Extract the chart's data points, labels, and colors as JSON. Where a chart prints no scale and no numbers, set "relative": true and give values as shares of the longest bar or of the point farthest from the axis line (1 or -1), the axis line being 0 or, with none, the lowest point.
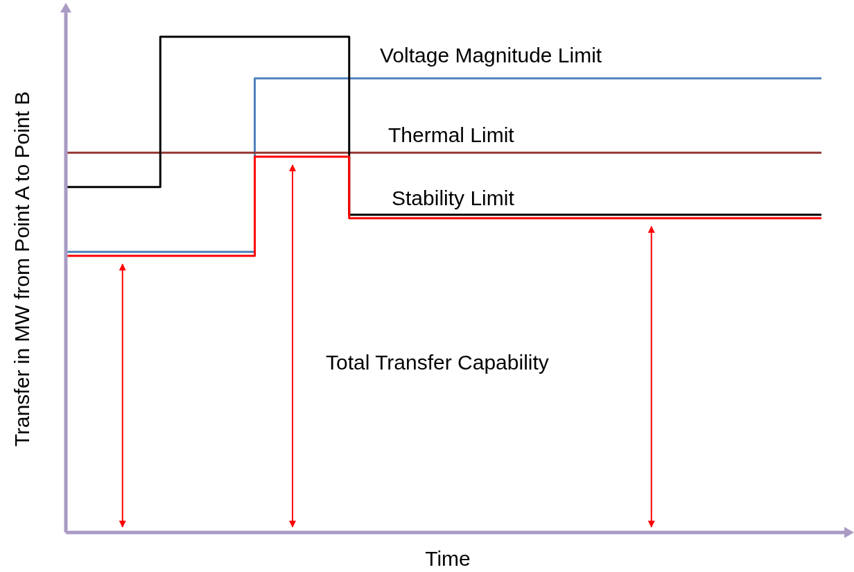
{
  "chart_data": {
    "type": "step",
    "relative": true,
    "xlabel": "Time",
    "ylabel": "Transfer in MW from Point A to Point B",
    "annotations": [
      "Total Transfer Capability"
    ],
    "categories": [
      null,
      null,
      null,
      null,
      null,
      null,
      null,
      null,
      null
    ],
    "series": [
      {
        "name": "Voltage Magnitude Limit",
        "color": "#4f81bd",
        "values": [
          0.566,
          0.566,
          0.916,
          0.916,
          0.916,
          0.916,
          0.916,
          0.916,
          0.916
        ]
      },
      {
        "name": "Thermal Limit",
        "type": "line",
        "color": "#953735",
        "values": [
          0.766,
          0.766,
          0.766,
          0.766,
          0.766,
          0.766,
          0.766,
          0.766,
          0.766
        ]
      },
      {
        "name": "Stability Limit",
        "color": "#000000",
        "values": [
          0.697,
          1,
          1,
          0.641,
          0.641,
          0.641,
          0.641,
          0.641,
          0.641
        ]
      },
      {
        "color": "#ff0000",
        "values": [
          0.558,
          0.558,
          0.758,
          0.634,
          0.634,
          0.634,
          0.634,
          0.634,
          0.634
        ]
      }
    ]
  }
}
